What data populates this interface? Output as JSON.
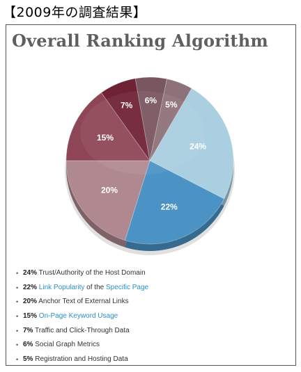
{
  "header": {
    "caption": "【2009年の調査結果】"
  },
  "chart_data": {
    "type": "pie",
    "title": "Overall Ranking Algorithm",
    "slices": [
      {
        "label": "Trust/Authority of the Host Domain",
        "value": 24,
        "display": "24%",
        "color": "#a9cfe0"
      },
      {
        "label": "Link Popularity of the Specific Page",
        "value": 22,
        "display": "22%",
        "color": "#4b93c5"
      },
      {
        "label": "Anchor Text of External Links",
        "value": 20,
        "display": "20%",
        "color": "#b0888f"
      },
      {
        "label": "On-Page Keyword Usage",
        "value": 15,
        "display": "15%",
        "color": "#8e4656"
      },
      {
        "label": "Traffic and Click-Through Data",
        "value": 7,
        "display": "7%",
        "color": "#6f2136"
      },
      {
        "label": "Social Graph Metrics",
        "value": 6,
        "display": "6%",
        "color": "#7a5660"
      },
      {
        "label": "Registration and Hosting Data",
        "value": 5,
        "display": "5%",
        "color": "#8e7279"
      }
    ]
  },
  "legend": {
    "items": [
      {
        "pct": "24%",
        "parts": [
          {
            "text": " Trust/Authority of the Host Domain",
            "link": false
          }
        ]
      },
      {
        "pct": "22%",
        "parts": [
          {
            "text": " ",
            "link": false
          },
          {
            "text": "Link Popularity",
            "link": true
          },
          {
            "text": " of the ",
            "link": false
          },
          {
            "text": "Specific Page",
            "link": true
          }
        ]
      },
      {
        "pct": "20%",
        "parts": [
          {
            "text": " Anchor Text of External Links",
            "link": false
          }
        ]
      },
      {
        "pct": "15%",
        "parts": [
          {
            "text": " ",
            "link": false
          },
          {
            "text": "On-Page Keyword Usage",
            "link": true
          }
        ]
      },
      {
        "pct": "7%",
        "parts": [
          {
            "text": " Traffic and Click-Through Data",
            "link": false
          }
        ]
      },
      {
        "pct": "6%",
        "parts": [
          {
            "text": " Social Graph Metrics",
            "link": false
          }
        ]
      },
      {
        "pct": "5%",
        "parts": [
          {
            "text": " Registration and Hosting Data",
            "link": false
          }
        ]
      }
    ]
  }
}
